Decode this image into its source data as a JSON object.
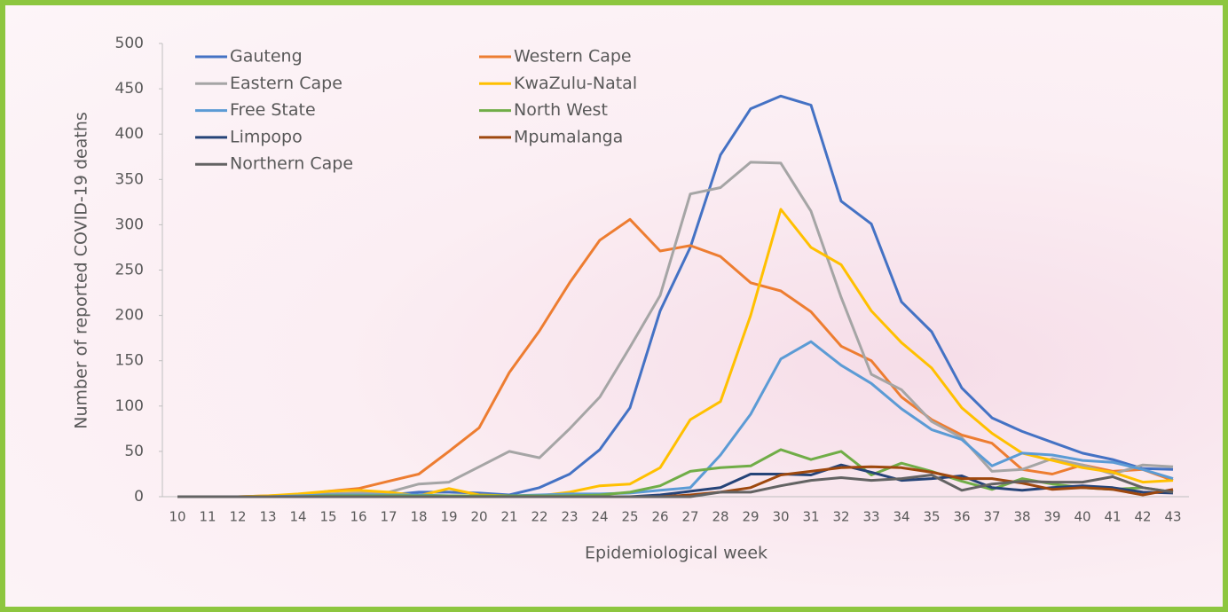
{
  "chart_data": {
    "type": "line",
    "x_label": "Epidemiological week",
    "y_label": "Number of reported COVID-19 deaths",
    "categories": [
      "10",
      "11",
      "12",
      "13",
      "14",
      "15",
      "16",
      "17",
      "18",
      "19",
      "20",
      "21",
      "22",
      "23",
      "24",
      "25",
      "26",
      "27",
      "28",
      "29",
      "30",
      "31",
      "32",
      "33",
      "34",
      "35",
      "36",
      "37",
      "38",
      "39",
      "40",
      "41",
      "42",
      "43"
    ],
    "ylim": [
      0,
      500
    ],
    "yticks": [
      0,
      50,
      100,
      150,
      200,
      250,
      300,
      350,
      400,
      450,
      500
    ],
    "legend": "top-left",
    "series": [
      {
        "name": "Gauteng",
        "color": "#4472c4",
        "values": [
          0,
          0,
          0,
          0,
          1,
          2,
          2,
          2,
          5,
          5,
          4,
          2,
          10,
          25,
          52,
          98,
          205,
          275,
          377,
          428,
          442,
          432,
          326,
          301,
          215,
          182,
          120,
          87,
          72,
          60,
          48,
          41,
          31,
          30
        ]
      },
      {
        "name": "Western Cape",
        "color": "#ed7d31",
        "values": [
          0,
          0,
          0,
          1,
          2,
          6,
          9,
          17,
          25,
          50,
          76,
          137,
          183,
          236,
          283,
          306,
          271,
          277,
          265,
          236,
          227,
          204,
          166,
          150,
          110,
          85,
          68,
          59,
          30,
          25,
          35,
          28,
          30,
          18
        ]
      },
      {
        "name": "Eastern Cape",
        "color": "#a5a5a5",
        "values": [
          0,
          0,
          0,
          0,
          1,
          3,
          4,
          5,
          14,
          16,
          33,
          50,
          43,
          75,
          110,
          165,
          222,
          334,
          341,
          369,
          368,
          315,
          220,
          135,
          118,
          83,
          65,
          28,
          30,
          42,
          35,
          25,
          35,
          33
        ]
      },
      {
        "name": "KwaZulu-Natal",
        "color": "#ffc000",
        "values": [
          0,
          0,
          0,
          1,
          3,
          6,
          7,
          5,
          1,
          9,
          2,
          1,
          1,
          5,
          12,
          14,
          32,
          85,
          105,
          200,
          317,
          275,
          256,
          205,
          170,
          142,
          98,
          70,
          48,
          40,
          32,
          27,
          16,
          18
        ]
      },
      {
        "name": "Free State",
        "color": "#5b9bd5",
        "values": [
          0,
          0,
          0,
          0,
          1,
          2,
          2,
          2,
          2,
          1,
          1,
          1,
          2,
          3,
          3,
          4,
          7,
          10,
          46,
          91,
          152,
          171,
          145,
          125,
          97,
          74,
          63,
          34,
          48,
          46,
          40,
          38,
          30,
          20
        ]
      },
      {
        "name": "North West",
        "color": "#70ad47",
        "values": [
          0,
          0,
          0,
          0,
          0,
          1,
          1,
          1,
          1,
          1,
          1,
          1,
          1,
          1,
          2,
          5,
          12,
          28,
          32,
          34,
          52,
          41,
          50,
          24,
          37,
          28,
          17,
          8,
          20,
          14,
          10,
          8,
          10,
          5
        ]
      },
      {
        "name": "Limpopo",
        "color": "#264478",
        "values": [
          0,
          0,
          0,
          0,
          0,
          0,
          0,
          0,
          0,
          0,
          0,
          0,
          0,
          0,
          0,
          0,
          2,
          6,
          10,
          25,
          25,
          24,
          35,
          27,
          18,
          20,
          23,
          10,
          7,
          10,
          12,
          10,
          5,
          4
        ]
      },
      {
        "name": "Mpumalanga",
        "color": "#9e480e",
        "values": [
          0,
          0,
          0,
          0,
          0,
          0,
          0,
          0,
          0,
          0,
          0,
          0,
          0,
          0,
          0,
          0,
          0,
          2,
          5,
          10,
          24,
          28,
          32,
          33,
          32,
          27,
          20,
          20,
          15,
          8,
          10,
          8,
          2,
          8
        ]
      },
      {
        "name": "Northern Cape",
        "color": "#636363",
        "values": [
          0,
          0,
          0,
          0,
          0,
          0,
          0,
          0,
          0,
          0,
          0,
          0,
          0,
          0,
          0,
          0,
          0,
          0,
          5,
          5,
          12,
          18,
          21,
          18,
          20,
          24,
          7,
          14,
          17,
          16,
          16,
          22,
          10,
          5
        ]
      }
    ]
  }
}
